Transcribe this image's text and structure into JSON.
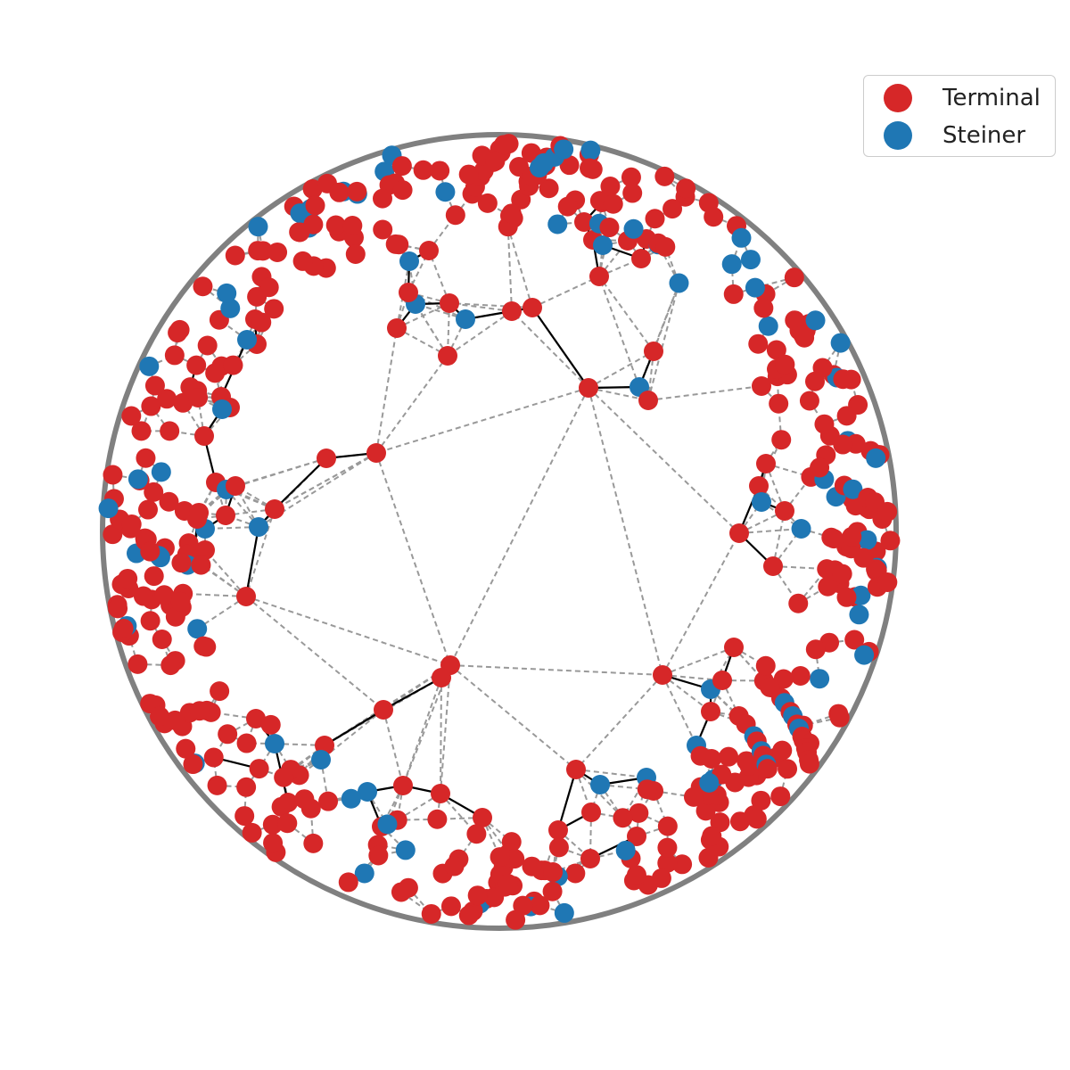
{
  "legend": {
    "items": [
      {
        "label": "Terminal",
        "color": "#d62728"
      },
      {
        "label": "Steiner",
        "color": "#1f77b4"
      }
    ]
  },
  "colors": {
    "terminal": "#d62728",
    "steiner": "#1f77b4",
    "tree_edge": "#000000",
    "candidate_edge": "#999999",
    "boundary": "#808080"
  }
}
